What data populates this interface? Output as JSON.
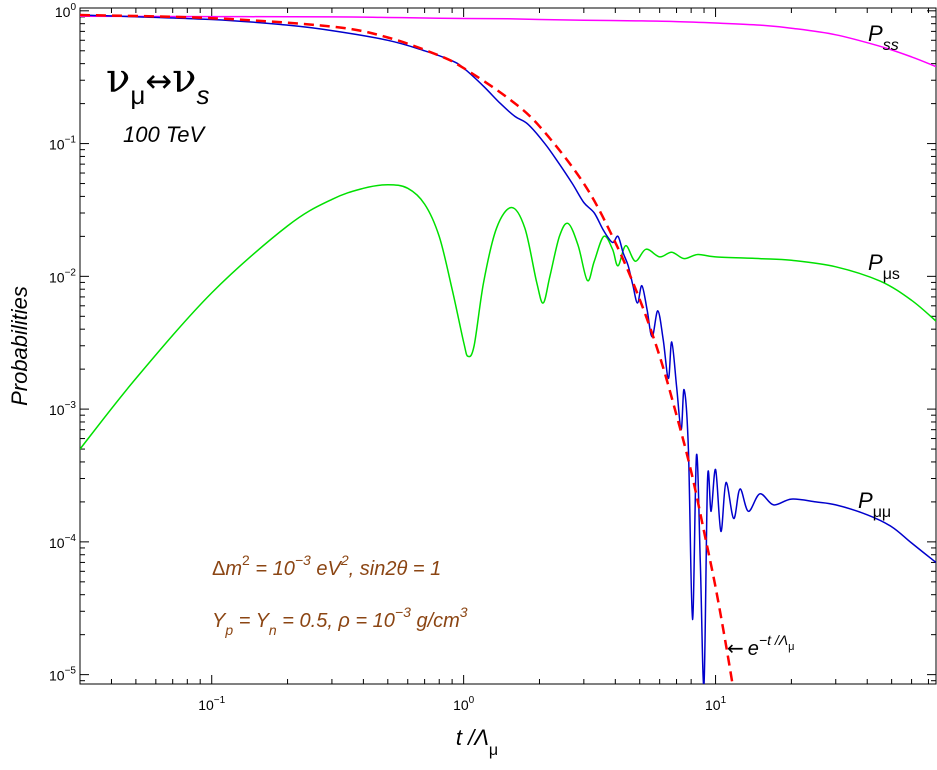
{
  "chart_data": {
    "type": "line",
    "xscale": "log",
    "yscale": "log",
    "xlim": [
      0.03,
      75
    ],
    "ylim": [
      8.5e-06,
      1.05
    ],
    "xlabel": {
      "main": "t /Λ",
      "sub": "μ"
    },
    "ylabel": "Probabilities",
    "x_ticks": [
      {
        "value": 0.1,
        "base": "10",
        "exp": "−1"
      },
      {
        "value": 1,
        "base": "10",
        "exp": "0"
      },
      {
        "value": 10,
        "base": "10",
        "exp": "1"
      }
    ],
    "y_ticks": [
      {
        "value": 1,
        "base": "10",
        "exp": "0"
      },
      {
        "value": 0.1,
        "base": "10",
        "exp": "−1"
      },
      {
        "value": 0.01,
        "base": "10",
        "exp": "−2"
      },
      {
        "value": 0.001,
        "base": "10",
        "exp": "−3"
      },
      {
        "value": 0.0001,
        "base": "10",
        "exp": "−4"
      },
      {
        "value": 1e-05,
        "base": "10",
        "exp": "−5"
      }
    ],
    "grid": false,
    "legend": "none",
    "colors": {
      "Pss": "#ff00ff",
      "Pmus": "#00e000",
      "Pmumu": "#0000cc",
      "exp": "#ff0000",
      "annotation": "#8b4513"
    },
    "series": [
      {
        "key": "Pss",
        "label": {
          "main": "P",
          "sub": "ss"
        },
        "points": [
          [
            0.03,
            0.91
          ],
          [
            0.1,
            0.905
          ],
          [
            0.3,
            0.9
          ],
          [
            0.5,
            0.89
          ],
          [
            0.8,
            0.88
          ],
          [
            1,
            0.875
          ],
          [
            1.5,
            0.87
          ],
          [
            2,
            0.86
          ],
          [
            3,
            0.85
          ],
          [
            5,
            0.84
          ],
          [
            7,
            0.83
          ],
          [
            10,
            0.81
          ],
          [
            15,
            0.78
          ],
          [
            20,
            0.74
          ],
          [
            30,
            0.66
          ],
          [
            45,
            0.54
          ],
          [
            60,
            0.45
          ],
          [
            75,
            0.38
          ]
        ]
      },
      {
        "key": "Pmus",
        "label": {
          "main": "P",
          "sub": "μs"
        },
        "points": [
          [
            0.03,
            0.0005
          ],
          [
            0.05,
            0.0017
          ],
          [
            0.1,
            0.0075
          ],
          [
            0.2,
            0.024
          ],
          [
            0.3,
            0.038
          ],
          [
            0.4,
            0.046
          ],
          [
            0.5,
            0.049
          ],
          [
            0.6,
            0.046
          ],
          [
            0.7,
            0.035
          ],
          [
            0.8,
            0.02
          ],
          [
            0.9,
            0.008
          ],
          [
            1.0,
            0.0032
          ],
          [
            1.04,
            0.0025
          ],
          [
            1.1,
            0.003
          ],
          [
            1.2,
            0.009
          ],
          [
            1.35,
            0.023
          ],
          [
            1.55,
            0.033
          ],
          [
            1.75,
            0.023
          ],
          [
            1.95,
            0.009
          ],
          [
            2.07,
            0.0063
          ],
          [
            2.2,
            0.01
          ],
          [
            2.4,
            0.02
          ],
          [
            2.6,
            0.025
          ],
          [
            2.85,
            0.017
          ],
          [
            3.1,
            0.0093
          ],
          [
            3.3,
            0.013
          ],
          [
            3.6,
            0.02
          ],
          [
            3.9,
            0.016
          ],
          [
            4.1,
            0.012
          ],
          [
            4.4,
            0.017
          ],
          [
            4.8,
            0.013
          ],
          [
            5.3,
            0.016
          ],
          [
            6,
            0.014
          ],
          [
            6.7,
            0.0152
          ],
          [
            7.5,
            0.0136
          ],
          [
            8.5,
            0.0146
          ],
          [
            10,
            0.014
          ],
          [
            15,
            0.0136
          ],
          [
            20,
            0.0132
          ],
          [
            30,
            0.0118
          ],
          [
            45,
            0.0092
          ],
          [
            60,
            0.0066
          ],
          [
            75,
            0.0046
          ]
        ]
      },
      {
        "key": "Pmumu",
        "label": {
          "main": "P",
          "sub": "μμ"
        },
        "points": [
          [
            0.03,
            0.93
          ],
          [
            0.1,
            0.86
          ],
          [
            0.2,
            0.78
          ],
          [
            0.3,
            0.71
          ],
          [
            0.5,
            0.6
          ],
          [
            0.7,
            0.5
          ],
          [
            0.9,
            0.42
          ],
          [
            1,
            0.37
          ],
          [
            1.2,
            0.27
          ],
          [
            1.4,
            0.2
          ],
          [
            1.6,
            0.16
          ],
          [
            1.8,
            0.14
          ],
          [
            2.1,
            0.1
          ],
          [
            2.4,
            0.07
          ],
          [
            2.7,
            0.05
          ],
          [
            3.0,
            0.036
          ],
          [
            3.3,
            0.03
          ],
          [
            3.6,
            0.022
          ],
          [
            3.9,
            0.018
          ],
          [
            4.1,
            0.02
          ],
          [
            4.3,
            0.015
          ],
          [
            4.5,
            0.012
          ],
          [
            4.7,
            0.0085
          ],
          [
            4.9,
            0.0063
          ],
          [
            5.1,
            0.0085
          ],
          [
            5.35,
            0.0056
          ],
          [
            5.6,
            0.0035
          ],
          [
            5.9,
            0.0055
          ],
          [
            6.2,
            0.0033
          ],
          [
            6.5,
            0.0017
          ],
          [
            6.7,
            0.0032
          ],
          [
            7.0,
            0.0015
          ],
          [
            7.3,
            0.0007
          ],
          [
            7.5,
            0.0014
          ],
          [
            7.8,
            0.0005
          ],
          [
            8.1,
            2.6e-05
          ],
          [
            8.4,
            0.00045
          ],
          [
            8.7,
            7e-05
          ],
          [
            9.0,
            8.5e-06
          ],
          [
            9.3,
            0.0003
          ],
          [
            9.6,
            0.00017
          ],
          [
            10.0,
            0.00035
          ],
          [
            10.5,
            0.00012
          ],
          [
            11.0,
            0.00028
          ],
          [
            11.8,
            0.00015
          ],
          [
            12.5,
            0.00025
          ],
          [
            13.5,
            0.00017
          ],
          [
            15,
            0.00023
          ],
          [
            17,
            0.00019
          ],
          [
            20,
            0.00021
          ],
          [
            25,
            0.0002
          ],
          [
            30,
            0.00019
          ],
          [
            40,
            0.00016
          ],
          [
            50,
            0.00013
          ],
          [
            60,
            9.8e-05
          ],
          [
            75,
            7e-05
          ]
        ]
      },
      {
        "key": "exp",
        "label": {
          "main": "e",
          "sup": "−t /Λ",
          "supsub": "μ"
        },
        "arrow": "←",
        "dashed": true,
        "points": [
          [
            0.03,
            0.93
          ],
          [
            0.1,
            0.88
          ],
          [
            0.3,
            0.76
          ],
          [
            0.5,
            0.63
          ],
          [
            0.8,
            0.46
          ],
          [
            1,
            0.37
          ],
          [
            1.5,
            0.22
          ],
          [
            2,
            0.135
          ],
          [
            3,
            0.05
          ],
          [
            4,
            0.018
          ],
          [
            5,
            0.0067
          ],
          [
            6,
            0.0025
          ],
          [
            7,
            0.0009
          ],
          [
            8,
            0.00034
          ],
          [
            9,
            0.00012
          ],
          [
            10,
            4.54e-05
          ],
          [
            11,
            1.67e-05
          ],
          [
            11.8,
            7.5e-06
          ]
        ]
      }
    ],
    "annotations": {
      "title": {
        "nu1": "ν",
        "sub1": "μ",
        "arrow": "↔",
        "nu2": "ν",
        "sub2": "s"
      },
      "energy": "100 TeV",
      "params1": {
        "delta": "Δ",
        "m": "m",
        "eq": " = 10",
        "exp": "−3",
        "unit": " eV",
        "unitexp": "2",
        "rest": ",  sin2θ = 1"
      },
      "params2": {
        "y": "Y",
        "ysub": "p",
        "mid": " = Y",
        "nsub": "n",
        "rest": " = 0.5,  ρ = 10",
        "exp": "−3",
        "unit": " g/cm",
        "unitexp": "3"
      }
    }
  }
}
